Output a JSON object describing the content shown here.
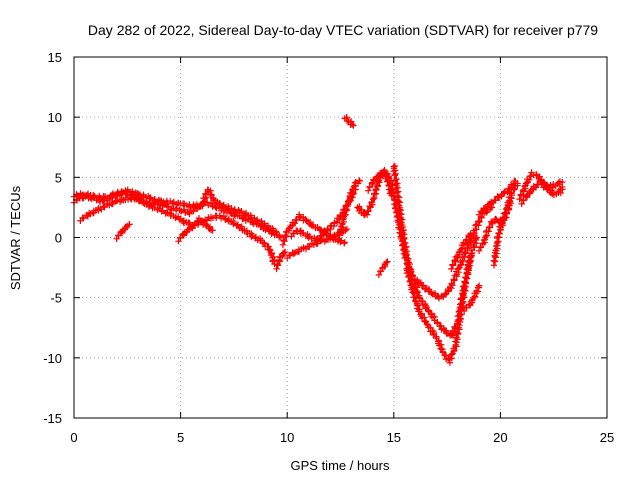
{
  "chart_data": {
    "type": "scatter",
    "title": "Day 282 of 2022, Sidereal Day-to-day VTEC variation (SDTVAR) for receiver p779",
    "xlabel": "GPS time / hours",
    "ylabel": "SDTVAR / TECUs",
    "xlim": [
      0,
      25
    ],
    "ylim": [
      -15,
      15
    ],
    "xticks": [
      0,
      5,
      10,
      15,
      20,
      25
    ],
    "yticks": [
      -15,
      -10,
      -5,
      0,
      5,
      10,
      15
    ],
    "grid": true,
    "marker": "+",
    "series": [
      {
        "name": "SDTVAR",
        "color": "#ff0000",
        "segments": [
          [
            [
              0.0,
              3.0
            ],
            [
              0.3,
              3.3
            ],
            [
              0.6,
              3.4
            ],
            [
              1.0,
              3.2
            ],
            [
              1.4,
              3.0
            ],
            [
              1.8,
              3.5
            ],
            [
              2.2,
              3.8
            ],
            [
              2.6,
              3.6
            ],
            [
              3.0,
              3.2
            ],
            [
              3.4,
              2.8
            ],
            [
              3.8,
              2.9
            ],
            [
              4.2,
              2.7
            ],
            [
              4.6,
              2.4
            ],
            [
              5.0,
              2.3
            ],
            [
              5.4,
              2.0
            ],
            [
              5.8,
              2.5
            ],
            [
              6.2,
              2.9
            ],
            [
              6.6,
              2.6
            ],
            [
              7.0,
              2.3
            ],
            [
              7.4,
              2.0
            ],
            [
              7.8,
              1.7
            ],
            [
              8.2,
              1.4
            ],
            [
              8.6,
              1.1
            ],
            [
              9.0,
              0.7
            ],
            [
              9.4,
              0.3
            ],
            [
              9.7,
              0.0
            ]
          ],
          [
            [
              0.3,
              1.5
            ],
            [
              0.8,
              2.0
            ],
            [
              1.2,
              2.4
            ],
            [
              1.6,
              2.7
            ],
            [
              2.0,
              3.0
            ],
            [
              2.4,
              3.2
            ],
            [
              2.8,
              3.3
            ],
            [
              3.2,
              3.0
            ],
            [
              3.6,
              2.6
            ],
            [
              4.0,
              2.3
            ],
            [
              4.4,
              2.0
            ],
            [
              4.8,
              1.7
            ],
            [
              5.2,
              1.3
            ],
            [
              5.6,
              1.0
            ],
            [
              6.0,
              1.3
            ],
            [
              6.4,
              1.6
            ],
            [
              6.8,
              1.8
            ],
            [
              7.2,
              1.5
            ],
            [
              7.6,
              1.1
            ],
            [
              8.0,
              0.6
            ],
            [
              8.4,
              0.1
            ],
            [
              8.8,
              -0.3
            ],
            [
              9.2,
              -1.0
            ],
            [
              9.4,
              -2.2
            ]
          ],
          [
            [
              0.0,
              3.5
            ],
            [
              0.5,
              3.6
            ],
            [
              1.0,
              3.4
            ],
            [
              1.5,
              3.3
            ],
            [
              2.0,
              3.5
            ],
            [
              2.5,
              3.9
            ],
            [
              3.0,
              3.6
            ],
            [
              3.5,
              3.3
            ],
            [
              4.0,
              3.0
            ],
            [
              4.5,
              2.9
            ],
            [
              5.0,
              2.8
            ],
            [
              5.5,
              2.6
            ],
            [
              6.0,
              2.7
            ],
            [
              6.3,
              4.0
            ],
            [
              6.6,
              3.0
            ],
            [
              7.0,
              2.6
            ],
            [
              7.5,
              2.3
            ],
            [
              8.0,
              2.0
            ],
            [
              8.5,
              1.5
            ],
            [
              9.0,
              1.0
            ],
            [
              9.5,
              0.4
            ]
          ],
          [
            [
              2.0,
              0.0
            ],
            [
              2.3,
              0.6
            ],
            [
              2.6,
              1.1
            ]
          ],
          [
            [
              4.9,
              -0.2
            ],
            [
              5.2,
              0.4
            ],
            [
              5.5,
              0.8
            ],
            [
              5.9,
              1.5
            ],
            [
              6.2,
              1.0
            ],
            [
              6.5,
              0.6
            ]
          ],
          [
            [
              9.5,
              -2.5
            ],
            [
              9.7,
              -1.6
            ],
            [
              9.9,
              -1.2
            ]
          ],
          [
            [
              9.8,
              -0.5
            ],
            [
              10.0,
              0.5
            ],
            [
              10.3,
              1.2
            ],
            [
              10.6,
              1.8
            ],
            [
              10.9,
              1.4
            ],
            [
              11.2,
              1.0
            ],
            [
              11.5,
              0.7
            ],
            [
              11.8,
              0.4
            ],
            [
              12.1,
              0.0
            ],
            [
              12.4,
              -0.3
            ],
            [
              12.7,
              -0.4
            ]
          ],
          [
            [
              10.0,
              -1.6
            ],
            [
              10.4,
              -1.2
            ],
            [
              10.8,
              -0.9
            ],
            [
              11.2,
              -0.6
            ],
            [
              11.6,
              -0.3
            ],
            [
              12.0,
              -0.1
            ],
            [
              12.4,
              0.3
            ],
            [
              12.8,
              0.7
            ]
          ],
          [
            [
              10.2,
              0.2
            ],
            [
              10.5,
              0.6
            ],
            [
              10.8,
              0.3
            ],
            [
              11.1,
              0.0
            ],
            [
              11.4,
              -0.2
            ],
            [
              11.7,
              0.3
            ],
            [
              12.0,
              0.8
            ],
            [
              12.3,
              1.3
            ],
            [
              12.6,
              2.0
            ],
            [
              12.9,
              3.0
            ],
            [
              13.2,
              4.0
            ]
          ],
          [
            [
              12.4,
              0.0
            ],
            [
              12.6,
              1.2
            ],
            [
              12.8,
              2.6
            ],
            [
              13.0,
              3.6
            ],
            [
              13.2,
              4.5
            ],
            [
              13.4,
              4.7
            ]
          ],
          [
            [
              12.7,
              10.0
            ],
            [
              12.9,
              9.7
            ],
            [
              13.1,
              9.3
            ]
          ],
          [
            [
              13.3,
              2.6
            ],
            [
              13.5,
              2.1
            ],
            [
              13.7,
              1.9
            ],
            [
              13.9,
              2.5
            ],
            [
              14.1,
              3.5
            ],
            [
              14.3,
              4.8
            ],
            [
              14.5,
              5.5
            ],
            [
              14.7,
              4.8
            ],
            [
              14.9,
              3.5
            ]
          ],
          [
            [
              13.8,
              4.0
            ],
            [
              14.1,
              4.8
            ],
            [
              14.4,
              5.3
            ],
            [
              14.6,
              5.5
            ],
            [
              14.8,
              5.0
            ],
            [
              15.0,
              3.5
            ],
            [
              15.2,
              1.5
            ],
            [
              15.4,
              -0.5
            ],
            [
              15.6,
              -2.0
            ],
            [
              15.8,
              -3.0
            ],
            [
              16.0,
              -3.5
            ],
            [
              16.2,
              -3.8
            ],
            [
              16.5,
              -4.2
            ],
            [
              16.8,
              -4.6
            ],
            [
              17.1,
              -5.0
            ],
            [
              17.4,
              -4.8
            ],
            [
              17.7,
              -4.0
            ],
            [
              18.0,
              -2.8
            ],
            [
              18.3,
              -1.5
            ],
            [
              18.6,
              -0.3
            ],
            [
              18.9,
              1.0
            ],
            [
              19.2,
              2.0
            ],
            [
              19.6,
              2.5
            ]
          ],
          [
            [
              15.0,
              6.0
            ],
            [
              15.2,
              3.5
            ],
            [
              15.4,
              0.8
            ],
            [
              15.6,
              -1.5
            ],
            [
              15.9,
              -3.5
            ],
            [
              16.2,
              -5.0
            ],
            [
              16.6,
              -6.0
            ],
            [
              17.0,
              -7.0
            ],
            [
              17.4,
              -7.8
            ],
            [
              17.7,
              -8.2
            ],
            [
              18.0,
              -7.0
            ],
            [
              18.2,
              -5.0
            ],
            [
              18.4,
              -3.2
            ],
            [
              18.6,
              -1.5
            ]
          ],
          [
            [
              15.6,
              -2.5
            ],
            [
              15.9,
              -4.5
            ],
            [
              16.2,
              -6.2
            ],
            [
              16.6,
              -7.3
            ],
            [
              17.0,
              -8.3
            ],
            [
              17.3,
              -9.5
            ],
            [
              17.6,
              -10.3
            ],
            [
              17.9,
              -9.0
            ],
            [
              18.1,
              -6.8
            ],
            [
              18.3,
              -4.5
            ],
            [
              18.5,
              -2.5
            ],
            [
              18.7,
              -1.0
            ],
            [
              18.9,
              0.0
            ]
          ],
          [
            [
              14.3,
              -3.0
            ],
            [
              14.5,
              -2.5
            ],
            [
              14.7,
              -2.0
            ]
          ],
          [
            [
              17.7,
              -2.5
            ],
            [
              18.0,
              -1.5
            ],
            [
              18.3,
              -0.5
            ],
            [
              18.6,
              0.3
            ]
          ],
          [
            [
              18.3,
              -6.0
            ],
            [
              18.6,
              -5.5
            ],
            [
              18.9,
              -4.5
            ],
            [
              19.0,
              -4.0
            ]
          ],
          [
            [
              19.0,
              -1.0
            ],
            [
              19.2,
              -0.5
            ],
            [
              19.4,
              0.5
            ],
            [
              19.6,
              1.2
            ],
            [
              19.8,
              1.5
            ],
            [
              20.0,
              1.2
            ],
            [
              20.2,
              1.8
            ],
            [
              20.4,
              3.0
            ],
            [
              20.6,
              4.0
            ],
            [
              20.8,
              4.5
            ]
          ],
          [
            [
              19.7,
              -2.2
            ],
            [
              19.8,
              -1.0
            ],
            [
              19.9,
              0.0
            ],
            [
              20.0,
              0.8
            ],
            [
              20.2,
              1.5
            ],
            [
              20.4,
              2.5
            ],
            [
              20.5,
              3.3
            ]
          ],
          [
            [
              19.0,
              2.0
            ],
            [
              19.3,
              2.5
            ],
            [
              19.6,
              2.9
            ],
            [
              19.9,
              3.3
            ],
            [
              20.2,
              3.7
            ],
            [
              20.5,
              4.2
            ],
            [
              20.7,
              4.7
            ]
          ],
          [
            [
              20.9,
              3.3
            ],
            [
              21.1,
              4.0
            ],
            [
              21.3,
              4.8
            ],
            [
              21.5,
              5.3
            ],
            [
              21.7,
              5.2
            ],
            [
              21.9,
              4.8
            ],
            [
              22.1,
              4.4
            ],
            [
              22.4,
              4.2
            ],
            [
              22.7,
              4.5
            ],
            [
              22.9,
              4.6
            ]
          ],
          [
            [
              21.0,
              2.9
            ],
            [
              21.3,
              3.6
            ],
            [
              21.6,
              4.2
            ],
            [
              21.9,
              4.6
            ],
            [
              22.2,
              4.0
            ],
            [
              22.5,
              3.6
            ],
            [
              22.8,
              3.8
            ],
            [
              22.9,
              4.2
            ]
          ]
        ]
      }
    ]
  }
}
